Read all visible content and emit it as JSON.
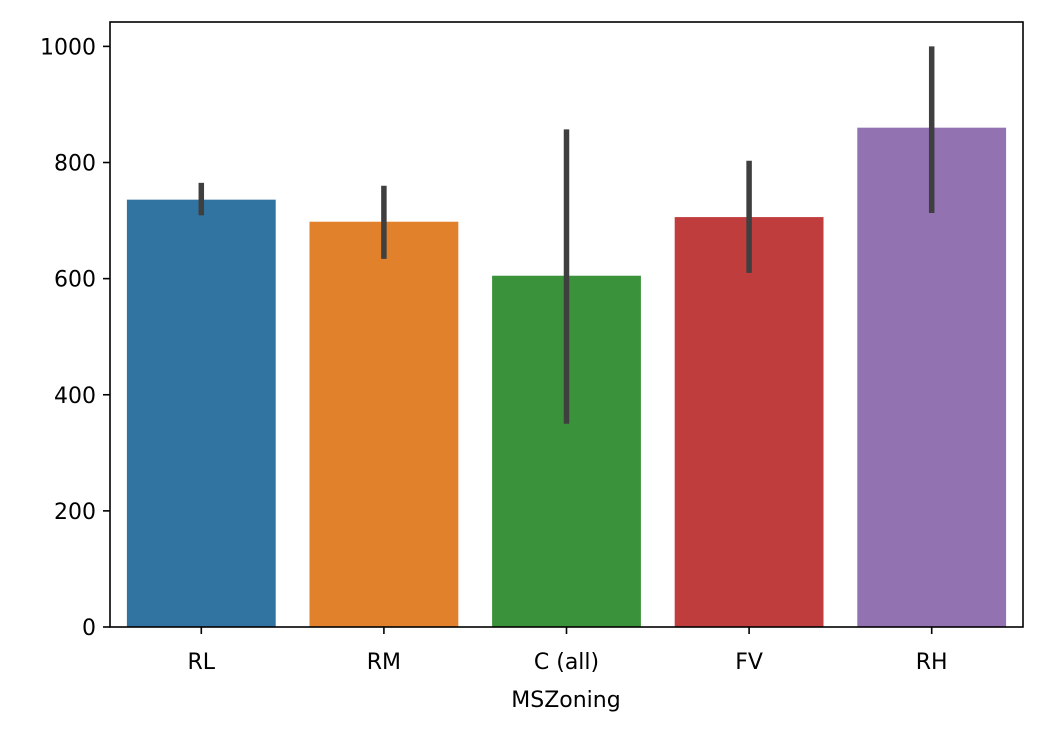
{
  "chart_data": {
    "type": "bar",
    "title": "",
    "xlabel": "MSZoning",
    "ylabel": "",
    "categories": [
      "RL",
      "RM",
      "C (all)",
      "FV",
      "RH"
    ],
    "values": [
      736,
      698,
      605,
      706,
      860
    ],
    "error_bars": [
      {
        "low": 709,
        "high": 765
      },
      {
        "low": 634,
        "high": 760
      },
      {
        "low": 350,
        "high": 857
      },
      {
        "low": 610,
        "high": 803
      },
      {
        "low": 713,
        "high": 1000
      }
    ],
    "colors": [
      "#3274a1",
      "#e1812c",
      "#3a923a",
      "#c03d3e",
      "#9372b2"
    ],
    "error_bar_color": "#3f3f3f",
    "ylim": [
      0,
      1042
    ],
    "yticks": [
      0,
      200,
      400,
      600,
      800,
      1000
    ],
    "ytick_labels": [
      "0",
      "200",
      "400",
      "600",
      "800",
      "1000"
    ],
    "grid": false,
    "legend": "none"
  }
}
